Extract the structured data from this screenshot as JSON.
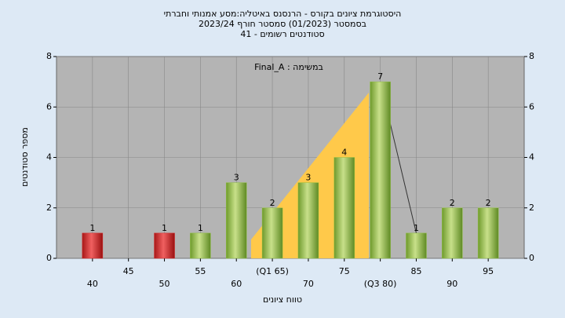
{
  "chart_data": {
    "type": "bar",
    "title": [
      "היסטוגרמת ציונים בקורס - הרנסנס באיטליה:מסע אמנותי וחברתי",
      "בסמסטר  (01/2023)  סמסטר חורף 2023/24",
      "סטודנטים רשומים - 41"
    ],
    "annotation": "Final_A : במשימה",
    "x_label": "טווח ציונים",
    "y_label": "מספר סטודנטים",
    "categories": [
      "40",
      "45",
      "50",
      "55",
      "60",
      "(Q1 65)",
      "70",
      "75",
      "(Q3 80)",
      "85",
      "90",
      "95"
    ],
    "values": [
      1,
      null,
      1,
      1,
      3,
      2,
      3,
      4,
      7,
      1,
      2,
      2
    ],
    "colors": [
      "#d42a2a",
      null,
      "#d42a2a",
      "#8fbf40",
      "#8fbf40",
      "#8fbf40",
      "#8fbf40",
      "#8fbf40",
      "#8fbf40",
      "#8fbf40",
      "#8fbf40",
      "#8fbf40"
    ],
    "ylim": [
      0,
      8
    ],
    "yticks": [
      0,
      2,
      4,
      6,
      8
    ],
    "grid": true
  }
}
